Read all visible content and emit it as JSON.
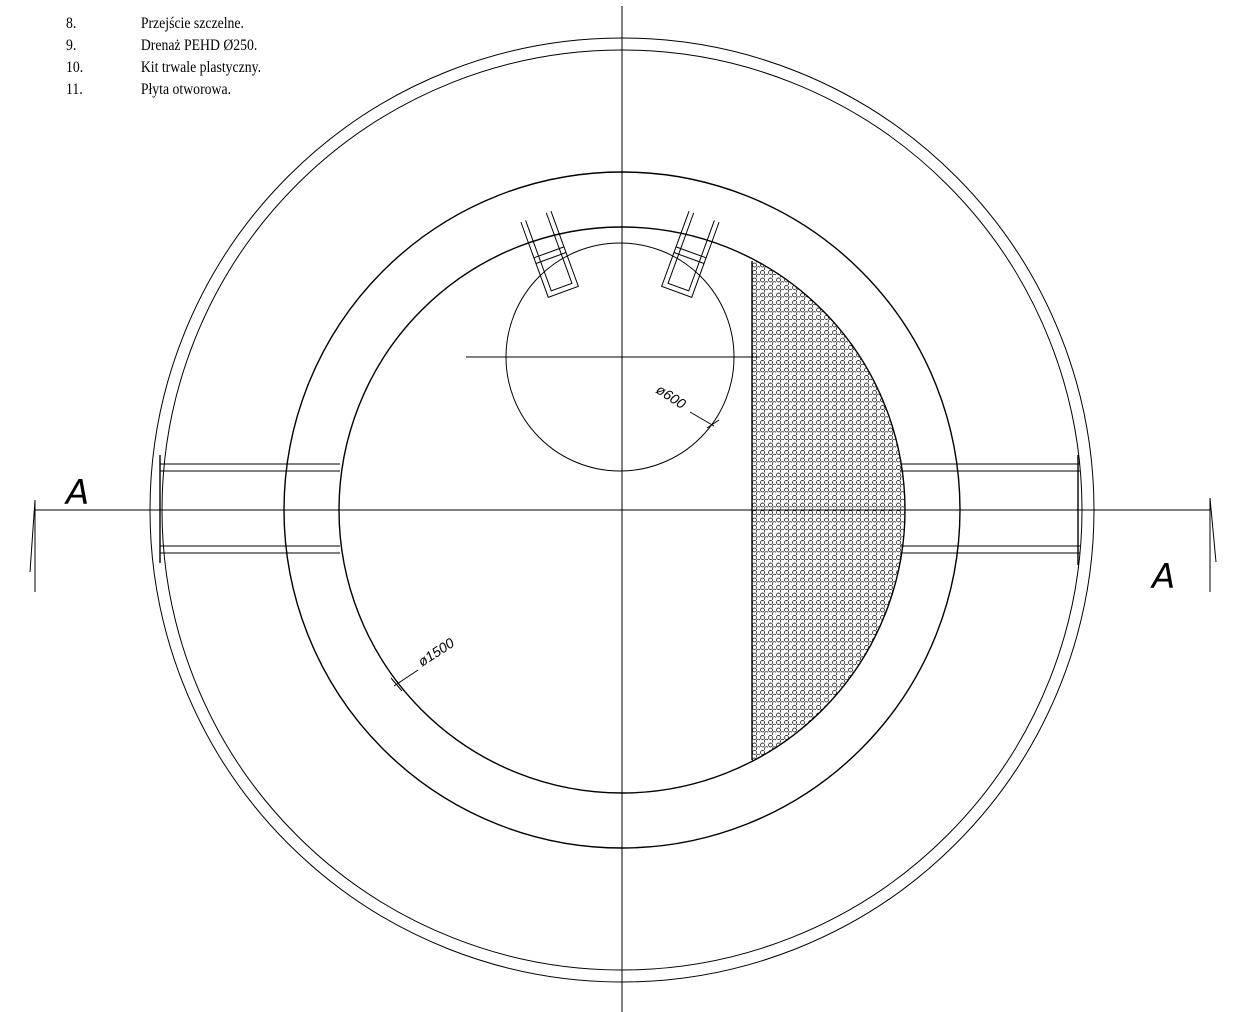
{
  "legend": {
    "items": [
      {
        "num": "8.",
        "text": "Przejście szczelne."
      },
      {
        "num": "9.",
        "text": "Drenaż PEHD Ø250."
      },
      {
        "num": "10.",
        "text": "Kit trwale plastyczny."
      },
      {
        "num": "11.",
        "text": "Płyta otworowa."
      }
    ]
  },
  "section": {
    "left_label": "A",
    "right_label": "A"
  },
  "dimensions": {
    "small_diameter": "ø600",
    "large_diameter": "ø1500"
  }
}
